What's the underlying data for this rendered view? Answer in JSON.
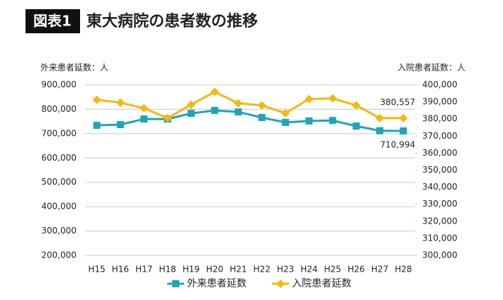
{
  "badge": "図表1",
  "chart_data": {
    "type": "line",
    "title": "東大病院の患者数の推移",
    "y_label": "外来患者延数：人",
    "y2_label": "入院患者延数：人",
    "categories": [
      "H15",
      "H16",
      "H17",
      "H18",
      "H19",
      "H20",
      "H21",
      "H22",
      "H23",
      "H24",
      "H25",
      "H26",
      "H27",
      "H28"
    ],
    "series": [
      {
        "name": "外来患者延数",
        "color": "#1ea5b8",
        "marker": "square",
        "values": [
          734000,
          737000,
          760000,
          760000,
          783000,
          795000,
          789000,
          766000,
          746000,
          752000,
          754000,
          731000,
          712000,
          710994
        ],
        "value_labels": [
          null,
          null,
          null,
          null,
          null,
          null,
          null,
          null,
          null,
          null,
          null,
          null,
          null,
          "710,994"
        ]
      },
      {
        "name": "入院患者延数",
        "color": "#f2b90c",
        "marker": "diamond",
        "axis": "y2",
        "values": [
          391300,
          389600,
          386300,
          380500,
          388400,
          395900,
          389200,
          388000,
          383400,
          391700,
          392100,
          388000,
          380500,
          380557
        ],
        "value_labels": [
          null,
          null,
          null,
          null,
          null,
          null,
          null,
          null,
          null,
          null,
          null,
          null,
          null,
          "380,557"
        ]
      }
    ],
    "ylim": [
      200000,
      900000
    ],
    "yticks": [
      {
        "value": 200000,
        "label": "200,000"
      },
      {
        "value": 300000,
        "label": "300,000"
      },
      {
        "value": 400000,
        "label": "400,000"
      },
      {
        "value": 500000,
        "label": "500,000"
      },
      {
        "value": 600000,
        "label": "600,000"
      },
      {
        "value": 700000,
        "label": "700,000"
      },
      {
        "value": 800000,
        "label": "800,000"
      },
      {
        "value": 900000,
        "label": "900,000"
      }
    ],
    "y2lim": [
      300000,
      400000
    ],
    "y2ticks": [
      {
        "value": 300000,
        "label": "300,000"
      },
      {
        "value": 310000,
        "label": "310,000"
      },
      {
        "value": 320000,
        "label": "320,000"
      },
      {
        "value": 330000,
        "label": "330,000"
      },
      {
        "value": 340000,
        "label": "340,000"
      },
      {
        "value": 350000,
        "label": "350,000"
      },
      {
        "value": 360000,
        "label": "360,000"
      },
      {
        "value": 370000,
        "label": "370,000"
      },
      {
        "value": 380000,
        "label": "380,000"
      },
      {
        "value": 390000,
        "label": "390,000"
      },
      {
        "value": 400000,
        "label": "400,000"
      }
    ],
    "grid": true,
    "legend": "bottom"
  }
}
